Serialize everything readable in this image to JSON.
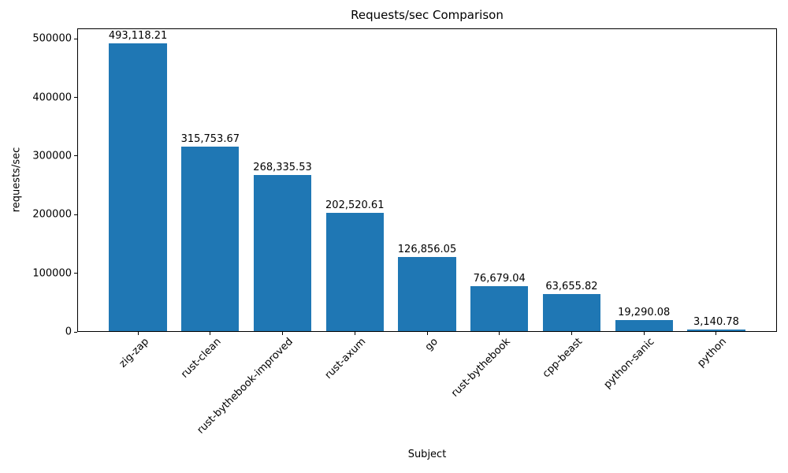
{
  "chart_data": {
    "type": "bar",
    "title": "Requests/sec Comparison",
    "xlabel": "Subject",
    "ylabel": "requests/sec",
    "categories": [
      "zig-zap",
      "rust-clean",
      "rust-bythebook-improved",
      "rust-axum",
      "go",
      "rust-bythebook",
      "cpp-beast",
      "python-sanic",
      "python"
    ],
    "values": [
      493118.21,
      315753.67,
      268335.53,
      202520.61,
      126856.05,
      76679.04,
      63655.82,
      19290.08,
      3140.78
    ],
    "value_labels": [
      "493,118.21",
      "315,753.67",
      "268,335.53",
      "202,520.61",
      "126,856.05",
      "76,679.04",
      "63,655.82",
      "19,290.08",
      "3,140.78"
    ],
    "yticks": [
      0,
      100000,
      200000,
      300000,
      400000,
      500000
    ],
    "ytick_labels": [
      "0",
      "100000",
      "200000",
      "300000",
      "400000",
      "500000"
    ],
    "ylim": [
      0,
      517774
    ],
    "bar_color": "#1f77b4",
    "grid": false,
    "legend": "none",
    "x_tick_rotation_deg": 45
  }
}
